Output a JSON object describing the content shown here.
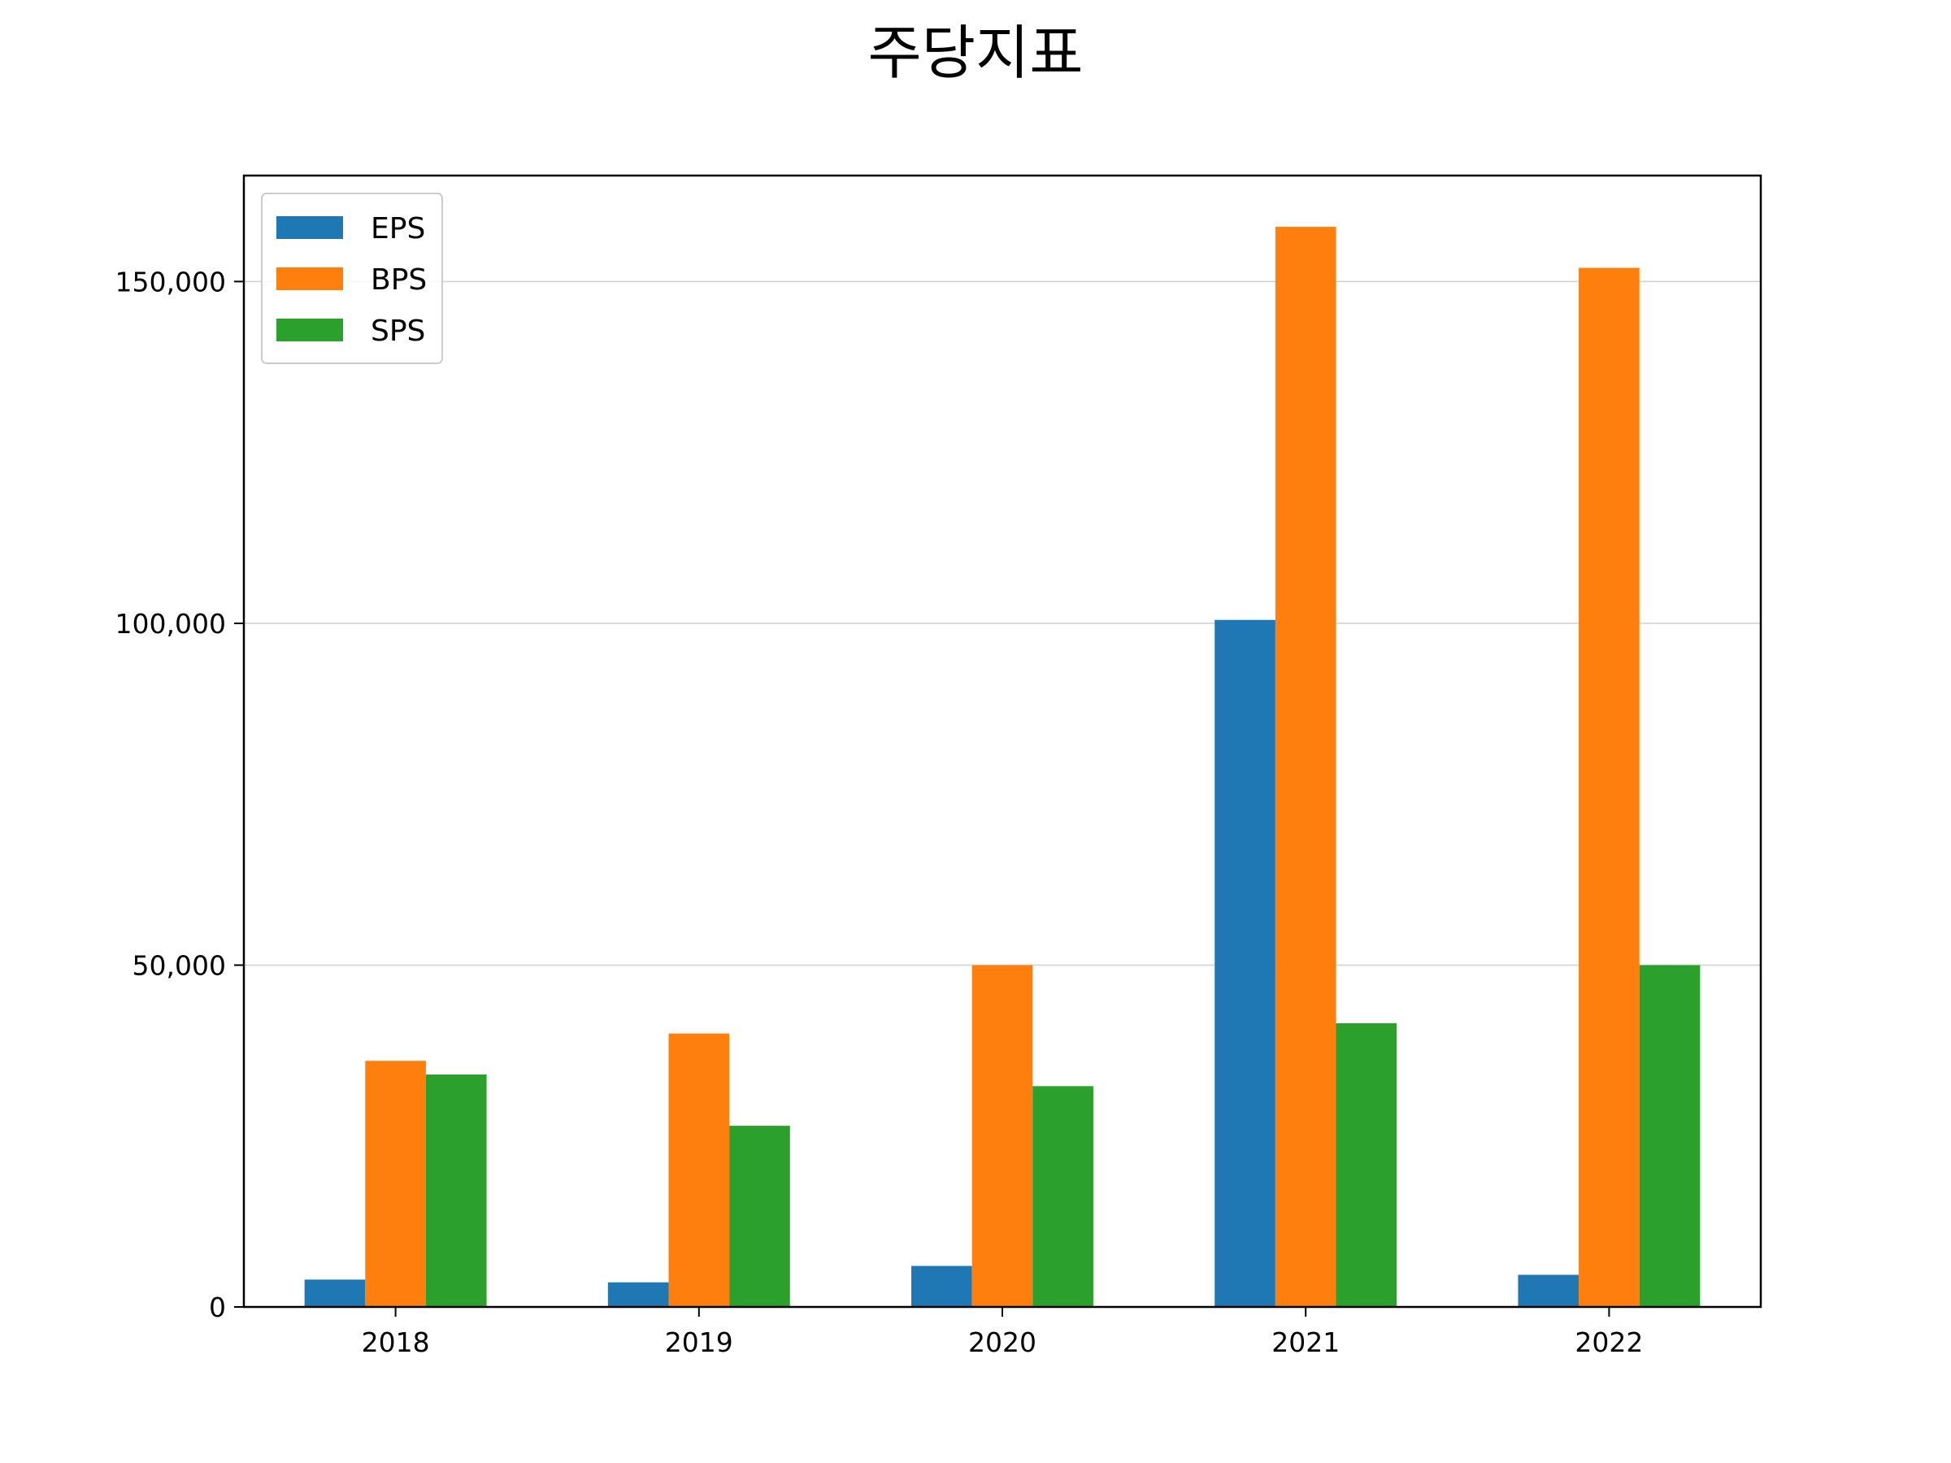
{
  "chart_data": {
    "type": "bar",
    "title": "주당지표",
    "xlabel": "",
    "ylabel": "",
    "categories": [
      "2018",
      "2019",
      "2020",
      "2021",
      "2022"
    ],
    "series": [
      {
        "name": "EPS",
        "color": "#1f77b4",
        "values": [
          4000,
          3600,
          6000,
          100500,
          4700
        ]
      },
      {
        "name": "BPS",
        "color": "#ff7f0e",
        "values": [
          36000,
          40000,
          50000,
          158000,
          152000
        ]
      },
      {
        "name": "SPS",
        "color": "#2ca02c",
        "values": [
          34000,
          26500,
          32300,
          41500,
          50000
        ]
      }
    ],
    "ylim": [
      0,
      165500
    ],
    "yticks": [
      0,
      50000,
      100000,
      150000
    ],
    "ytick_labels": [
      "0",
      "50,000",
      "100,000",
      "150,000"
    ],
    "grid": "y-major",
    "legend_position": "top-left"
  }
}
